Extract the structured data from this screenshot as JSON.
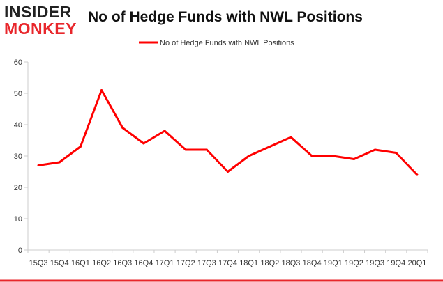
{
  "logo": {
    "line1": "INSIDER",
    "line2": "MONKEY"
  },
  "colors": {
    "series": "#ff0000",
    "axis": "#cccccc",
    "logo_red": "#e8262b",
    "frame": "#e8262b"
  },
  "chart_data": {
    "type": "line",
    "title": "No of Hedge Funds with NWL Positions",
    "xlabel": "",
    "ylabel": "",
    "legend": "top-center",
    "grid": false,
    "ylim": [
      0,
      60
    ],
    "yticks": [
      0,
      10,
      20,
      30,
      40,
      50,
      60
    ],
    "categories": [
      "15Q3",
      "15Q4",
      "16Q1",
      "16Q2",
      "16Q3",
      "16Q4",
      "17Q1",
      "17Q2",
      "17Q3",
      "17Q4",
      "18Q1",
      "18Q2",
      "18Q3",
      "18Q4",
      "19Q1",
      "19Q2",
      "19Q3",
      "19Q4",
      "20Q1"
    ],
    "series": [
      {
        "name": "No of Hedge Funds with NWL Positions",
        "values": [
          27,
          28,
          33,
          51,
          39,
          34,
          38,
          32,
          32,
          25,
          30,
          33,
          36,
          30,
          30,
          29,
          32,
          31,
          24
        ]
      }
    ]
  }
}
